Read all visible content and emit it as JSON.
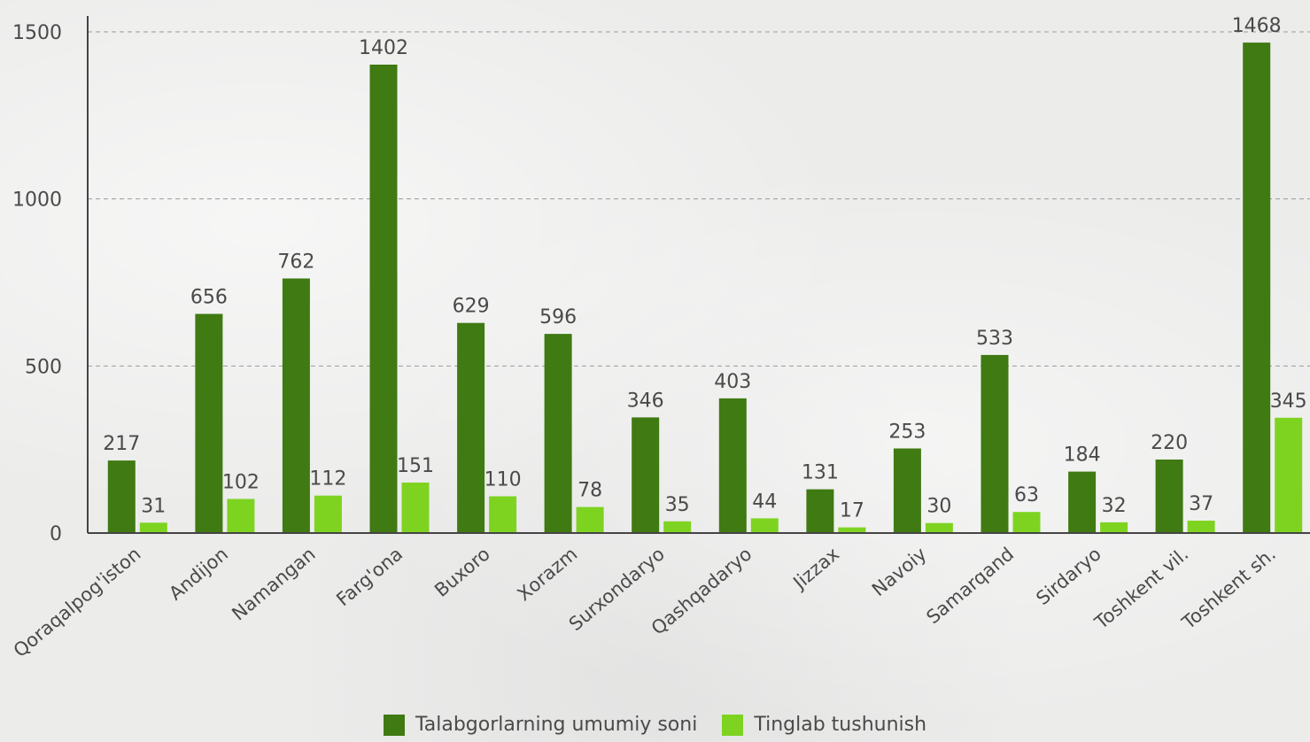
{
  "chart_data": {
    "type": "bar",
    "categories": [
      "Qoraqalpog'iston",
      "Andijon",
      "Namangan",
      "Farg'ona",
      "Buxoro",
      "Xorazm",
      "Surxondaryo",
      "Qashqadaryo",
      "Jizzax",
      "Navoiy",
      "Samarqand",
      "Sirdaryo",
      "Toshkent vil.",
      "Toshkent sh."
    ],
    "series": [
      {
        "name": "Talabgorlarning umumiy soni",
        "color": "#3f7a12",
        "values": [
          217,
          656,
          762,
          1402,
          629,
          596,
          346,
          403,
          131,
          253,
          533,
          184,
          220,
          1468
        ]
      },
      {
        "name": "Tinglab tushunish",
        "color": "#7ed321",
        "values": [
          31,
          102,
          112,
          151,
          110,
          78,
          35,
          44,
          17,
          30,
          63,
          32,
          37,
          345
        ]
      }
    ],
    "ylim": [
      0,
      1500
    ],
    "yticks": [
      "0",
      "500",
      "1000",
      "1500"
    ],
    "grid": true,
    "legend_position": "bottom",
    "xlabel": "",
    "ylabel": "",
    "title": ""
  }
}
